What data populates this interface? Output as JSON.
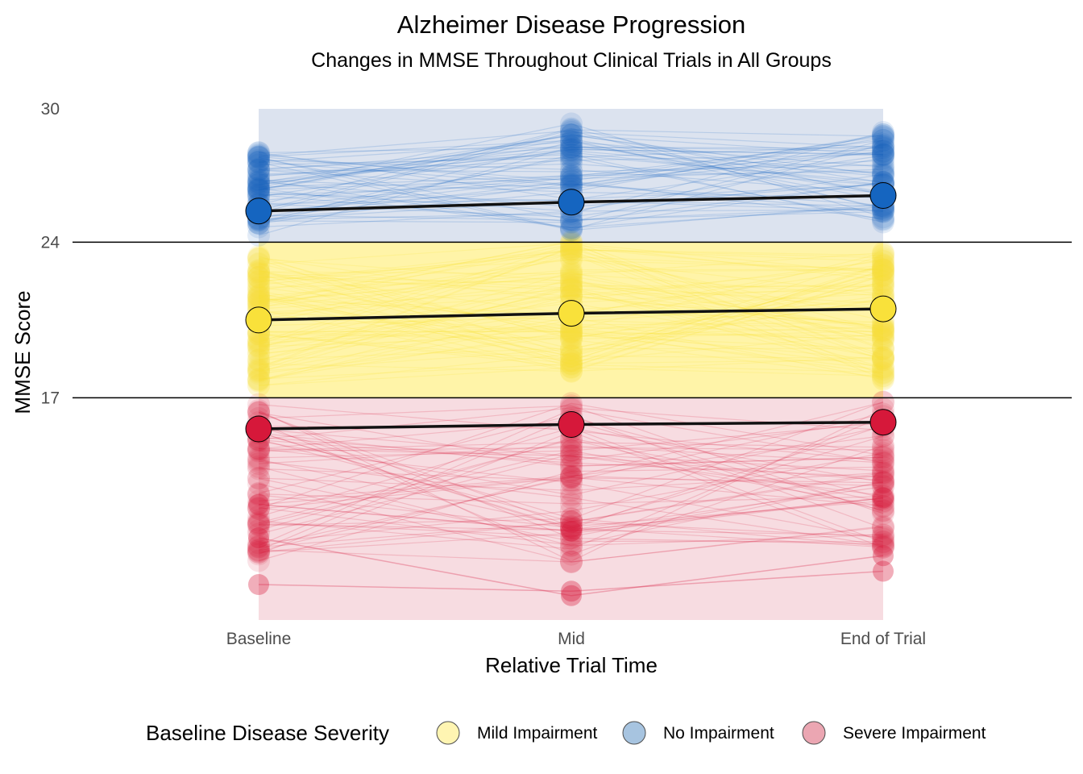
{
  "chart_data": {
    "type": "line",
    "title": "Alzheimer Disease Progression",
    "subtitle": "Changes in MMSE Throughout Clinical Trials in All Groups",
    "xlabel": "Relative Trial Time",
    "ylabel": "MMSE Score",
    "categories": [
      "Baseline",
      "Mid",
      "End of Trial"
    ],
    "yticks": [
      17,
      24,
      30
    ],
    "ylim": [
      6.5,
      30.3
    ],
    "hlines": [
      17,
      24
    ],
    "grid": false,
    "legend": {
      "title": "Baseline Disease Severity",
      "position": "bottom",
      "entries": [
        {
          "label": "Mild Impairment",
          "color": "#FFF5B2"
        },
        {
          "label": "No Impairment",
          "color": "#A7C4E0"
        },
        {
          "label": "Severe Impairment",
          "color": "#EBA6B2"
        }
      ]
    },
    "bands": [
      {
        "group": "No Impairment",
        "range": [
          24,
          30
        ],
        "color": "#DCE3EF"
      },
      {
        "group": "Mild Impairment",
        "range": [
          17,
          24
        ],
        "color": "#FFF4A8"
      },
      {
        "group": "Severe Impairment",
        "range": [
          7,
          17
        ],
        "color": "#F7DCE1"
      }
    ],
    "series": [
      {
        "name": "No Impairment",
        "color": "#1565C0",
        "mean": [
          25.4,
          25.8,
          26.1
        ],
        "min": [
          24.1,
          24.3,
          24.5
        ],
        "max": [
          28.7,
          30.0,
          29.5
        ]
      },
      {
        "name": "Mild Impairment",
        "color": "#F9E13A",
        "mean": [
          20.5,
          20.8,
          21.0
        ],
        "min": [
          17.0,
          17.6,
          17.2
        ],
        "max": [
          24.0,
          24.8,
          24.0
        ]
      },
      {
        "name": "Severe Impairment",
        "color": "#D6183A",
        "mean": [
          15.6,
          15.8,
          15.9
        ],
        "min": [
          8.6,
          8.3,
          9.2
        ],
        "max": [
          17.0,
          17.0,
          17.0
        ]
      }
    ],
    "outliers": [
      {
        "group": "Severe Impairment",
        "values": [
          10.7,
          8.1,
          9.9
        ]
      },
      {
        "group": "Severe Impairment",
        "values": [
          8.6,
          8.3,
          9.2
        ]
      },
      {
        "group": "Severe Impairment",
        "values": [
          12.2,
          11.0,
          12.5
        ]
      }
    ]
  }
}
